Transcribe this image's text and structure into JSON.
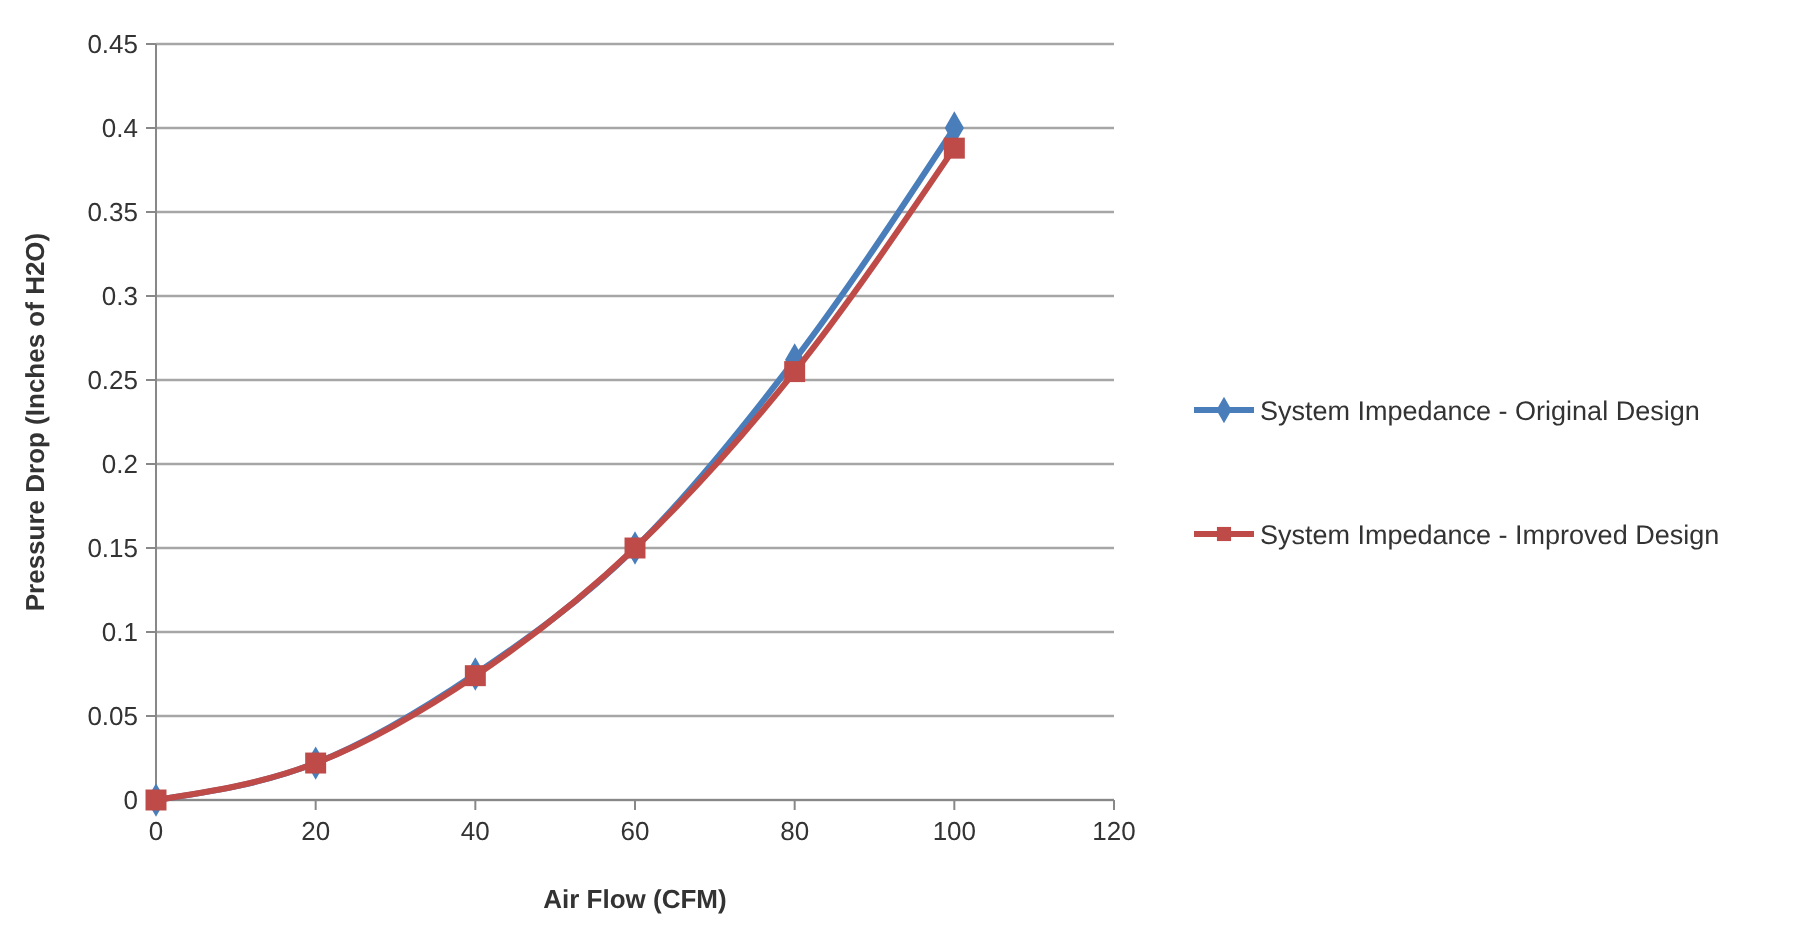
{
  "chart_data": {
    "type": "line",
    "xlabel": "Air Flow (CFM)",
    "ylabel": "Pressure Drop (Inches of H2O)",
    "x": [
      0,
      20,
      40,
      60,
      80,
      100
    ],
    "series": [
      {
        "name": "System Impedance - Original Design",
        "color": "#4a7ebb",
        "marker": "diamond",
        "values": [
          0,
          0.022,
          0.075,
          0.15,
          0.262,
          0.4
        ]
      },
      {
        "name": "System Impedance - Improved Design",
        "color": "#be4b48",
        "marker": "square",
        "values": [
          0,
          0.022,
          0.074,
          0.15,
          0.255,
          0.388
        ]
      }
    ],
    "xlim": [
      0,
      120
    ],
    "xticks": [
      0,
      20,
      40,
      60,
      80,
      100,
      120
    ],
    "ylim": [
      0,
      0.45
    ],
    "yticks": [
      0,
      0.05,
      0.1,
      0.15,
      0.2,
      0.25,
      0.3,
      0.35,
      0.4,
      0.45
    ],
    "grid": "y",
    "legend": "right",
    "line_style": "solid"
  }
}
